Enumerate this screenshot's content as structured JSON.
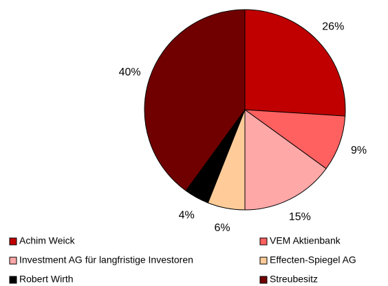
{
  "chart_data": {
    "type": "pie",
    "categories": [
      "Achim Weick",
      "VEM Aktienbank",
      "Investment AG für langfristige Investoren",
      "Effecten-Spiegel AG",
      "Robert Wirth",
      "Streubesitz"
    ],
    "values": [
      26,
      9,
      15,
      6,
      4,
      40
    ],
    "value_labels": [
      "26%",
      "9%",
      "15%",
      "6%",
      "4%",
      "40%"
    ],
    "colors": [
      "#c00000",
      "#ff6060",
      "#ffa8a8",
      "#ffcc99",
      "#000000",
      "#700000"
    ]
  }
}
